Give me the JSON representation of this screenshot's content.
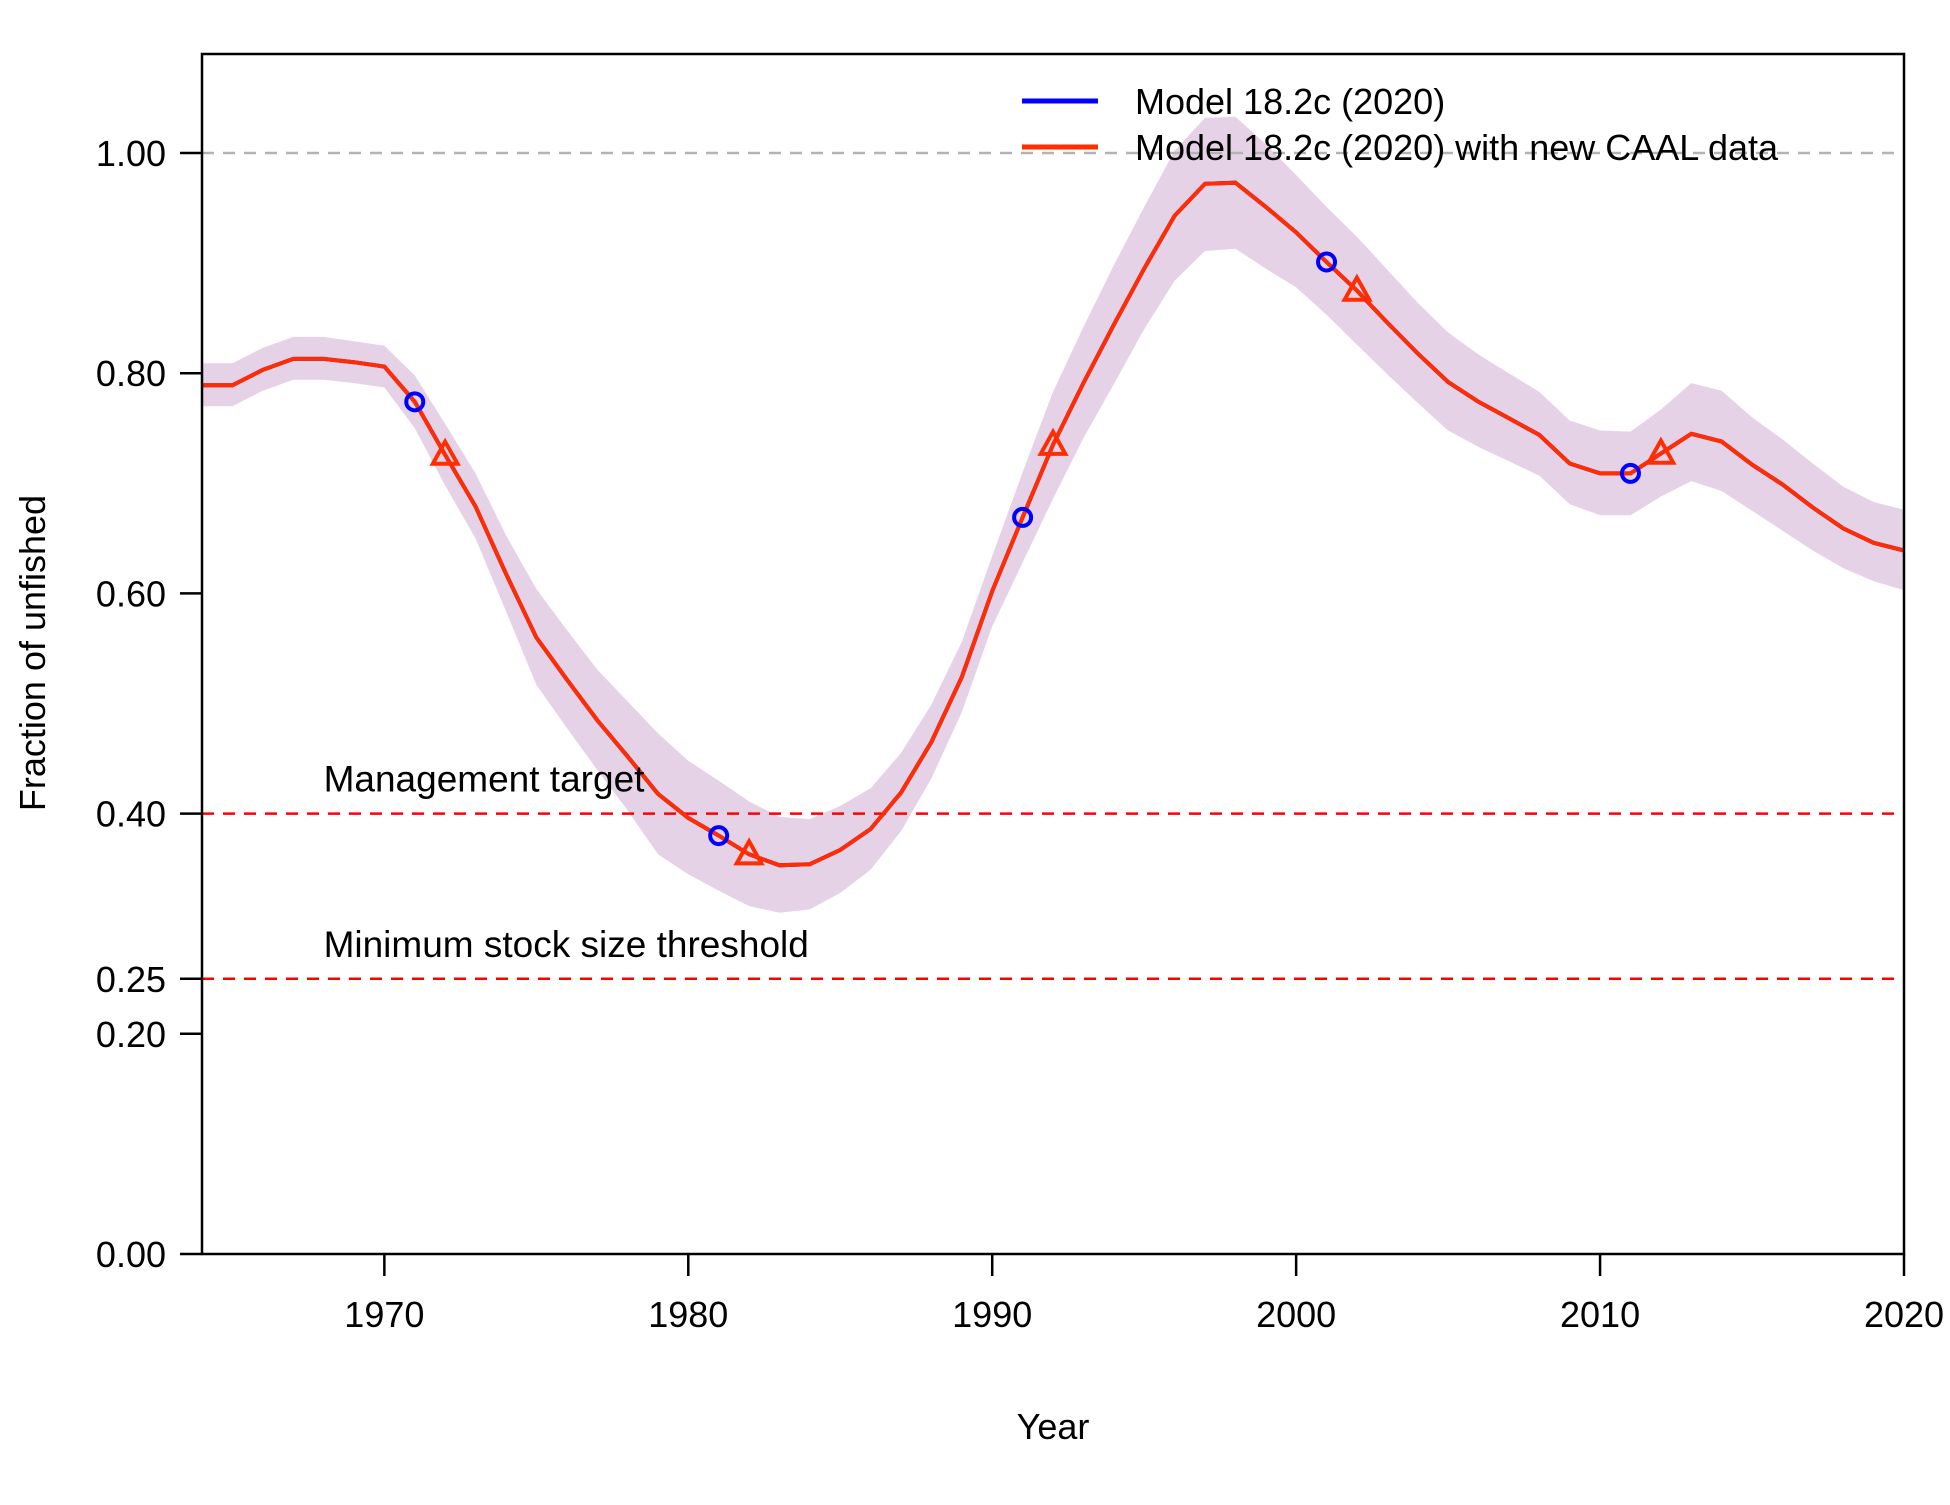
{
  "chart_data": {
    "type": "line",
    "title": "",
    "xlabel": "Year",
    "ylabel": "Fraction of unfished",
    "xlim": [
      1964,
      2020
    ],
    "ylim": [
      0,
      1.0
    ],
    "x_ticks": [
      1970,
      1980,
      1990,
      2000,
      2010,
      2020
    ],
    "y_ticks": [
      0.0,
      0.2,
      0.25,
      0.4,
      0.6,
      0.8,
      1.0
    ],
    "y_tick_labels": [
      "0.00",
      "0.20",
      "0.25",
      "0.40",
      "0.60",
      "0.80",
      "1.00"
    ],
    "grid": false,
    "legend_position": "top-right",
    "reference_lines": [
      {
        "y": 1.0,
        "color": "#b3b3b3",
        "style": "dashed",
        "label": ""
      },
      {
        "y": 0.4,
        "color": "#ff0000",
        "style": "dashed",
        "label": "Management target",
        "label_x": 1968
      },
      {
        "y": 0.25,
        "color": "#ff0000",
        "style": "dashed",
        "label": "Minimum stock size threshold",
        "label_x": 1968
      }
    ],
    "x": [
      1964,
      1965,
      1966,
      1967,
      1968,
      1969,
      1970,
      1971,
      1972,
      1973,
      1974,
      1975,
      1976,
      1977,
      1978,
      1979,
      1980,
      1981,
      1982,
      1983,
      1984,
      1985,
      1986,
      1987,
      1988,
      1989,
      1990,
      1991,
      1992,
      1993,
      1994,
      1995,
      1996,
      1997,
      1998,
      1999,
      2000,
      2001,
      2002,
      2003,
      2004,
      2005,
      2006,
      2007,
      2008,
      2009,
      2010,
      2011,
      2012,
      2013,
      2014,
      2015,
      2016,
      2017,
      2018,
      2019,
      2020
    ],
    "series": [
      {
        "name": "Model 18.2c (2020)",
        "color": "#0000ff",
        "marker": "circle",
        "marker_x": [
          1971,
          1981,
          1991,
          2001,
          2011
        ],
        "values": [
          0.789,
          0.789,
          0.803,
          0.813,
          0.813,
          0.81,
          0.806,
          0.774,
          0.726,
          0.679,
          0.618,
          0.56,
          0.522,
          0.485,
          0.452,
          0.418,
          0.396,
          0.38,
          0.363,
          0.353,
          0.354,
          0.367,
          0.386,
          0.419,
          0.465,
          0.524,
          0.602,
          0.669,
          0.735,
          0.791,
          0.844,
          0.895,
          0.943,
          0.972,
          0.973,
          0.951,
          0.928,
          0.901,
          0.875,
          0.846,
          0.818,
          0.792,
          0.774,
          0.759,
          0.744,
          0.718,
          0.709,
          0.709,
          0.727,
          0.745,
          0.738,
          0.717,
          0.699,
          0.678,
          0.659,
          0.646,
          0.639
        ]
      },
      {
        "name": "Model 18.2c (2020) with new CAAL data",
        "color": "#ff2d00",
        "marker": "triangle",
        "marker_x": [
          1972,
          1982,
          1992,
          2002,
          2012
        ],
        "band_color": "#e6d2e6",
        "values": [
          0.789,
          0.789,
          0.803,
          0.813,
          0.813,
          0.81,
          0.806,
          0.774,
          0.726,
          0.679,
          0.618,
          0.56,
          0.522,
          0.485,
          0.452,
          0.418,
          0.396,
          0.38,
          0.363,
          0.353,
          0.354,
          0.367,
          0.386,
          0.419,
          0.465,
          0.524,
          0.602,
          0.669,
          0.735,
          0.791,
          0.844,
          0.895,
          0.943,
          0.972,
          0.973,
          0.951,
          0.928,
          0.901,
          0.875,
          0.846,
          0.818,
          0.792,
          0.774,
          0.759,
          0.744,
          0.718,
          0.709,
          0.709,
          0.727,
          0.745,
          0.738,
          0.717,
          0.699,
          0.678,
          0.659,
          0.646,
          0.639
        ],
        "lower": [
          0.77,
          0.77,
          0.784,
          0.794,
          0.794,
          0.791,
          0.787,
          0.75,
          0.698,
          0.65,
          0.584,
          0.517,
          0.478,
          0.44,
          0.403,
          0.363,
          0.345,
          0.33,
          0.316,
          0.31,
          0.313,
          0.328,
          0.349,
          0.384,
          0.432,
          0.492,
          0.57,
          0.628,
          0.686,
          0.741,
          0.79,
          0.84,
          0.884,
          0.911,
          0.913,
          0.895,
          0.878,
          0.853,
          0.826,
          0.799,
          0.773,
          0.748,
          0.733,
          0.72,
          0.707,
          0.681,
          0.671,
          0.671,
          0.688,
          0.702,
          0.693,
          0.675,
          0.657,
          0.639,
          0.623,
          0.611,
          0.603
        ],
        "upper": [
          0.809,
          0.809,
          0.823,
          0.833,
          0.833,
          0.829,
          0.825,
          0.798,
          0.754,
          0.709,
          0.653,
          0.604,
          0.567,
          0.531,
          0.502,
          0.473,
          0.448,
          0.43,
          0.411,
          0.397,
          0.395,
          0.407,
          0.423,
          0.455,
          0.499,
          0.556,
          0.634,
          0.71,
          0.783,
          0.842,
          0.898,
          0.951,
          1.002,
          1.032,
          1.033,
          1.008,
          0.98,
          0.951,
          0.924,
          0.894,
          0.864,
          0.837,
          0.817,
          0.8,
          0.783,
          0.757,
          0.748,
          0.747,
          0.767,
          0.791,
          0.784,
          0.76,
          0.74,
          0.718,
          0.697,
          0.683,
          0.676
        ]
      }
    ]
  }
}
